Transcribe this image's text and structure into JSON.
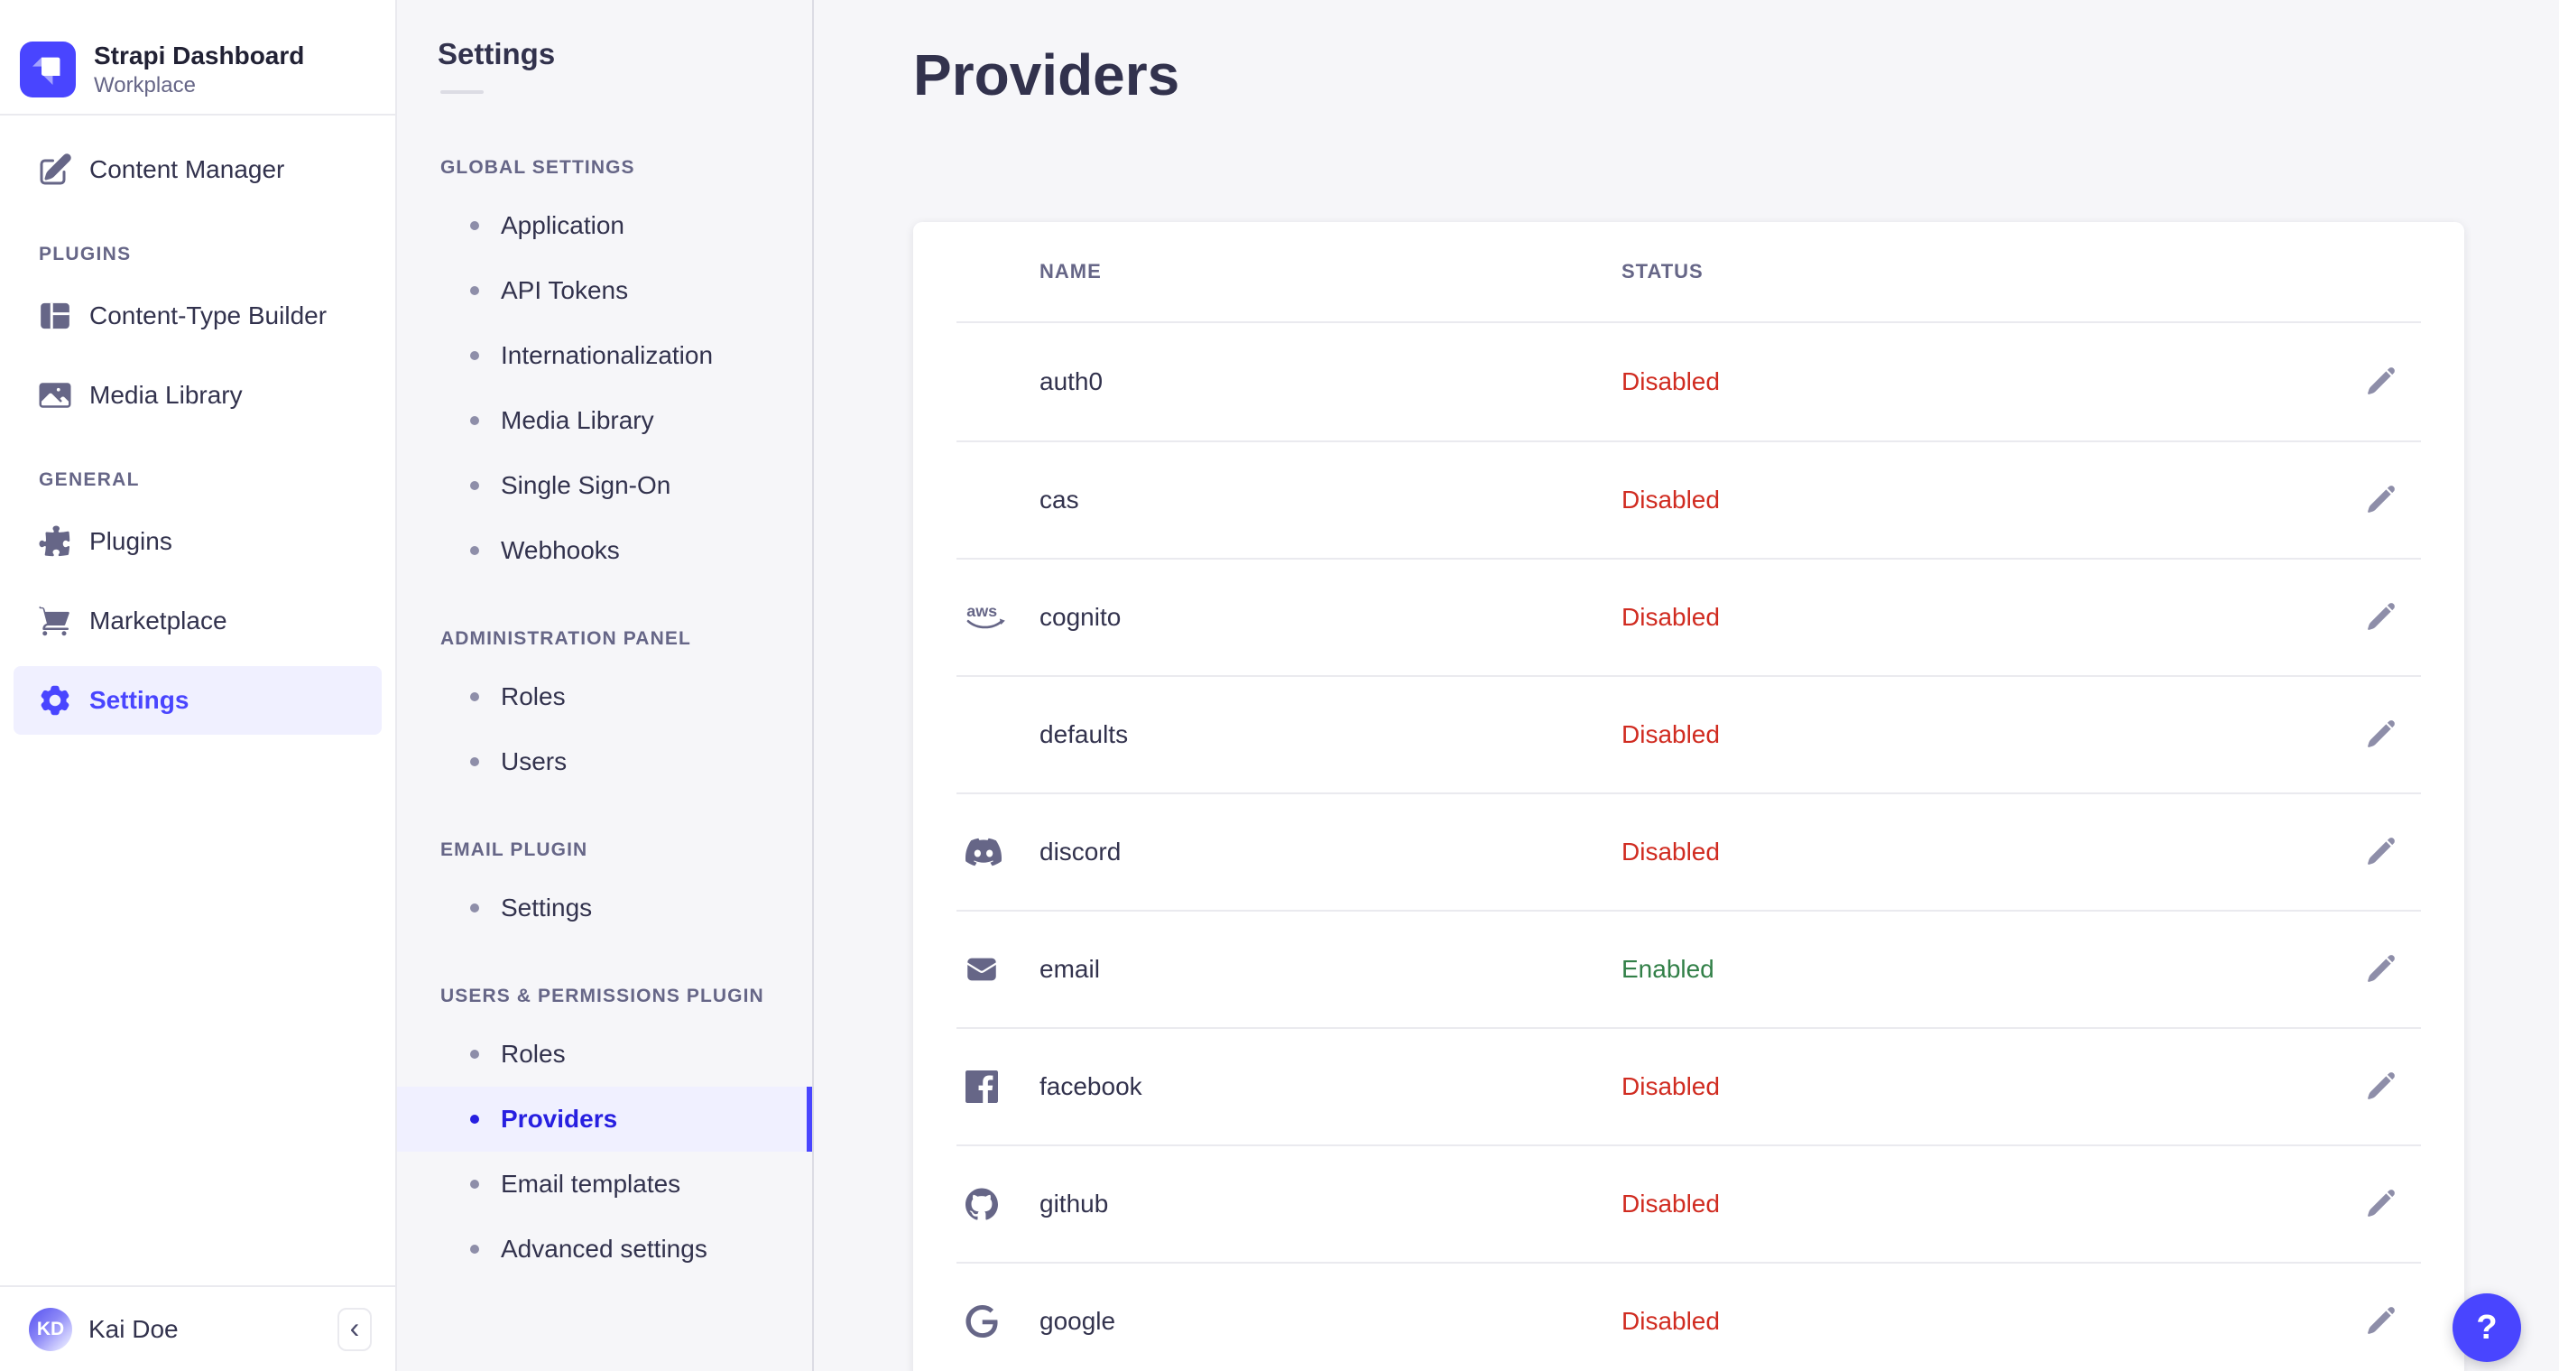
{
  "brand": {
    "title": "Strapi Dashboard",
    "subtitle": "Workplace"
  },
  "left_nav": {
    "items_top": [
      {
        "label": "Content Manager",
        "icon": "content-manager"
      }
    ],
    "sections": [
      {
        "header": "PLUGINS",
        "items": [
          {
            "label": "Content-Type Builder",
            "icon": "content-type-builder"
          },
          {
            "label": "Media Library",
            "icon": "media-library"
          }
        ]
      },
      {
        "header": "GENERAL",
        "items": [
          {
            "label": "Plugins",
            "icon": "plugins"
          },
          {
            "label": "Marketplace",
            "icon": "marketplace"
          },
          {
            "label": "Settings",
            "icon": "settings",
            "active": true
          }
        ]
      }
    ],
    "user": {
      "initials": "KD",
      "name": "Kai Doe"
    },
    "collapse_glyph": "‹"
  },
  "subnav": {
    "title": "Settings",
    "sections": [
      {
        "header": "GLOBAL SETTINGS",
        "items": [
          "Application",
          "API Tokens",
          "Internationalization",
          "Media Library",
          "Single Sign-On",
          "Webhooks"
        ]
      },
      {
        "header": "ADMINISTRATION PANEL",
        "items": [
          "Roles",
          "Users"
        ]
      },
      {
        "header": "EMAIL PLUGIN",
        "items": [
          "Settings"
        ]
      },
      {
        "header": "USERS & PERMISSIONS PLUGIN",
        "items": [
          "Roles",
          "Providers",
          "Email templates",
          "Advanced settings"
        ],
        "active": "Providers"
      }
    ]
  },
  "main": {
    "title": "Providers",
    "table": {
      "columns": [
        "NAME",
        "STATUS"
      ],
      "rows": [
        {
          "name": "auth0",
          "icon": null,
          "status": "Disabled"
        },
        {
          "name": "cas",
          "icon": null,
          "status": "Disabled"
        },
        {
          "name": "cognito",
          "icon": "aws",
          "status": "Disabled"
        },
        {
          "name": "defaults",
          "icon": null,
          "status": "Disabled"
        },
        {
          "name": "discord",
          "icon": "discord",
          "status": "Disabled"
        },
        {
          "name": "email",
          "icon": "email",
          "status": "Enabled"
        },
        {
          "name": "facebook",
          "icon": "facebook",
          "status": "Disabled"
        },
        {
          "name": "github",
          "icon": "github",
          "status": "Disabled"
        },
        {
          "name": "google",
          "icon": "google",
          "status": "Disabled"
        }
      ],
      "status_styles": {
        "Enabled": "success",
        "Disabled": "danger"
      }
    }
  },
  "help_label": "?",
  "colors": {
    "primary": "#4945ff",
    "primary_soft": "#f0f0ff",
    "active_text": "#271fe0",
    "danger": "#d02b20",
    "success": "#328048"
  }
}
